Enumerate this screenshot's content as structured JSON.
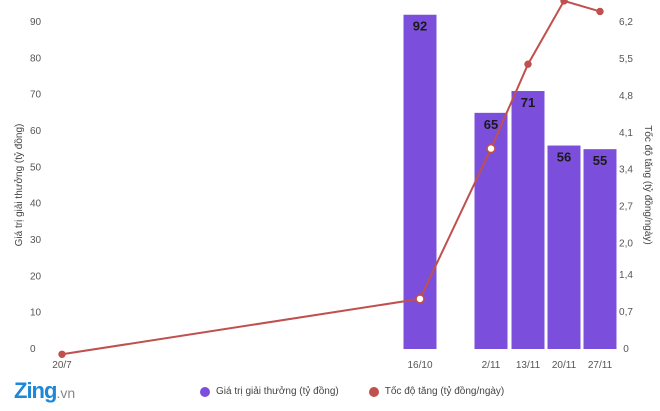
{
  "chart_data": {
    "type": "bar+line",
    "title": "",
    "categories": [
      "20/7",
      "16/10",
      "2/11",
      "13/11",
      "20/11",
      "27/11"
    ],
    "series": [
      {
        "name": "Giá trị giải thưởng (tỷ đồng)",
        "type": "bar",
        "axis": "left",
        "color": "#7b4fdb",
        "values": [
          null,
          92,
          65,
          71,
          56,
          55
        ],
        "labels": [
          "",
          "92",
          "65",
          "71",
          "56",
          "55"
        ]
      },
      {
        "name": "Tốc độ tăng (tỷ đồng/ngày)",
        "type": "line",
        "axis": "right",
        "color": "#c0504d",
        "values": [
          -0.1,
          0.95,
          3.8,
          5.4,
          6.6,
          6.4
        ]
      }
    ],
    "ylabel_left": "Giá trị giải thưởng (tỷ đồng)",
    "ylabel_right": "Tốc độ tăng (tỷ đồng/ngày)",
    "yticks_left": [
      "0",
      "10",
      "20",
      "30",
      "40",
      "50",
      "60",
      "70",
      "80",
      "90"
    ],
    "yticks_right": [
      "0",
      "0,7",
      "1,4",
      "2,0",
      "2,7",
      "3,4",
      "4,1",
      "4,8",
      "5,5",
      "6,2"
    ],
    "ylim_left": [
      0,
      95
    ],
    "ylim_right": [
      0,
      6.6
    ],
    "legend_position": "bottom"
  },
  "logo": {
    "main": "Zing",
    "suffix": ".vn"
  }
}
